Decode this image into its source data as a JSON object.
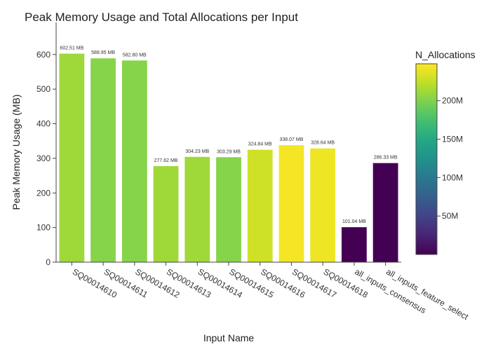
{
  "chart_data": {
    "type": "bar",
    "title": "Peak Memory Usage and Total Allocations per Input",
    "xlabel": "Input Name",
    "ylabel": "Peak Memory Usage (MB)",
    "ylim": [
      0,
      636
    ],
    "yticks": [
      0,
      100,
      200,
      300,
      400,
      500,
      600
    ],
    "grid": false,
    "categories": [
      "SQ00014610",
      "SQ00014611",
      "SQ00014612",
      "SQ00014613",
      "SQ00014614",
      "SQ00014615",
      "SQ00014616",
      "SQ00014617",
      "SQ00014618",
      "all_inputs_consensus",
      "all_inputs_feature_select"
    ],
    "values": [
      602.51,
      588.95,
      582.8,
      277.62,
      304.23,
      303.29,
      324.84,
      338.07,
      328.64,
      101.04,
      286.33
    ],
    "data_labels": [
      "602.51 MB",
      "588.95 MB",
      "582.80 MB",
      "277.62 MB",
      "304.23 MB",
      "303.29 MB",
      "324.84 MB",
      "338.07 MB",
      "328.64 MB",
      "101.04 MB",
      "286.33 MB"
    ],
    "color_values": [
      212000000,
      203000000,
      203000000,
      212000000,
      212000000,
      203000000,
      230000000,
      245000000,
      242000000,
      0,
      0
    ],
    "colorbar": {
      "title": "N_Allocations",
      "range": [
        0,
        248000000
      ],
      "ticks": [
        50000000,
        100000000,
        150000000,
        200000000
      ],
      "tick_labels": [
        "50M",
        "100M",
        "150M",
        "200M"
      ],
      "colorscale": "viridis"
    }
  }
}
